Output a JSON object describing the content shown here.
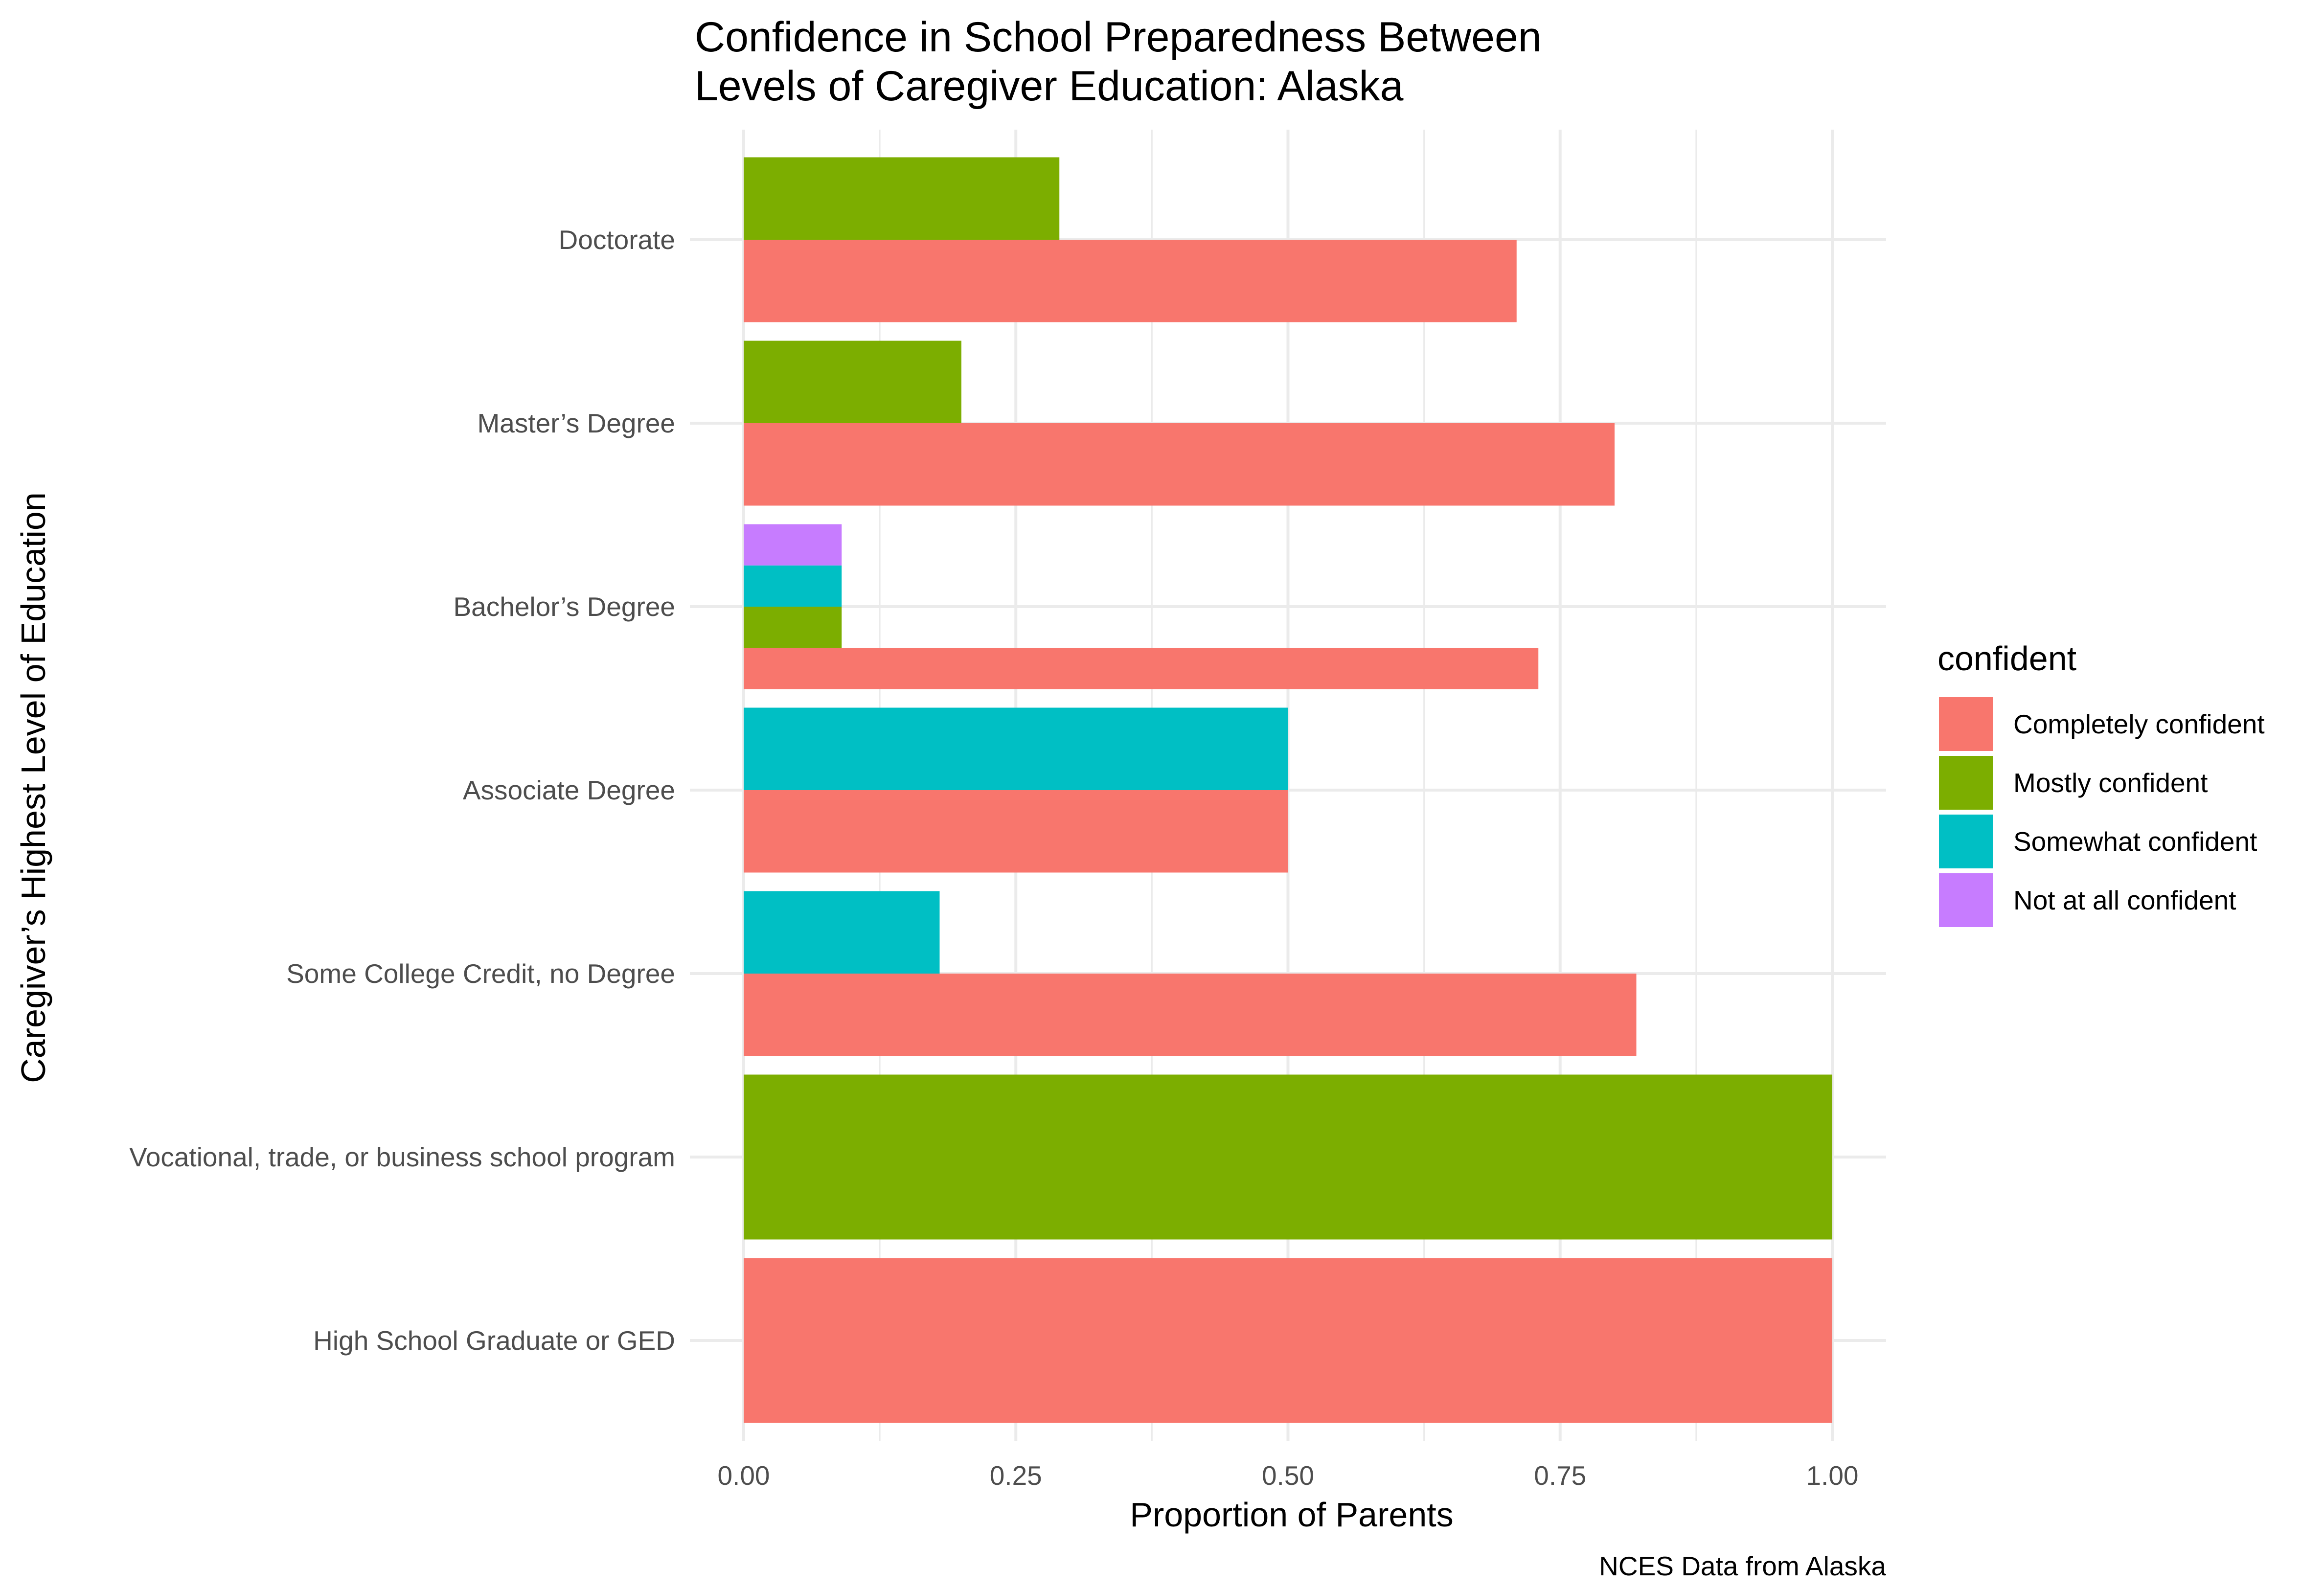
{
  "chart_data": {
    "type": "bar",
    "orientation": "horizontal",
    "layout": "dodged",
    "title_lines": [
      "Confidence in School Preparedness Between",
      "Levels of Caregiver Education: Alaska"
    ],
    "xlabel": "Proportion of Parents",
    "ylabel": "Caregiver’s Highest Level of Education",
    "caption": "NCES Data from Alaska",
    "xlim": [
      0,
      1
    ],
    "x_ticks": [
      "0.00",
      "0.25",
      "0.50",
      "0.75",
      "1.00"
    ],
    "grid": true,
    "legend": {
      "title": "confident",
      "position": "right",
      "entries": [
        {
          "name": "Completely confident",
          "color": "#F8766D"
        },
        {
          "name": "Mostly confident",
          "color": "#7CAE00"
        },
        {
          "name": "Somewhat confident",
          "color": "#00BFC4"
        },
        {
          "name": "Not at all confident",
          "color": "#C77CFF"
        }
      ]
    },
    "categories": [
      {
        "label": "Doctorate",
        "bars": [
          {
            "series": "Completely confident",
            "value": 0.71
          },
          {
            "series": "Mostly confident",
            "value": 0.29
          }
        ]
      },
      {
        "label": "Master’s Degree",
        "bars": [
          {
            "series": "Completely confident",
            "value": 0.8
          },
          {
            "series": "Mostly confident",
            "value": 0.2
          }
        ]
      },
      {
        "label": "Bachelor’s Degree",
        "bars": [
          {
            "series": "Completely confident",
            "value": 0.73
          },
          {
            "series": "Mostly confident",
            "value": 0.09
          },
          {
            "series": "Somewhat confident",
            "value": 0.09
          },
          {
            "series": "Not at all confident",
            "value": 0.09
          }
        ]
      },
      {
        "label": "Associate Degree",
        "bars": [
          {
            "series": "Completely confident",
            "value": 0.5
          },
          {
            "series": "Somewhat confident",
            "value": 0.5
          }
        ]
      },
      {
        "label": "Some College Credit, no Degree",
        "bars": [
          {
            "series": "Completely confident",
            "value": 0.82
          },
          {
            "series": "Somewhat confident",
            "value": 0.18
          }
        ]
      },
      {
        "label": "Vocational, trade, or business school program",
        "bars": [
          {
            "series": "Mostly confident",
            "value": 1.0
          }
        ]
      },
      {
        "label": "High School Graduate or GED",
        "bars": [
          {
            "series": "Completely confident",
            "value": 1.0
          }
        ]
      }
    ]
  }
}
